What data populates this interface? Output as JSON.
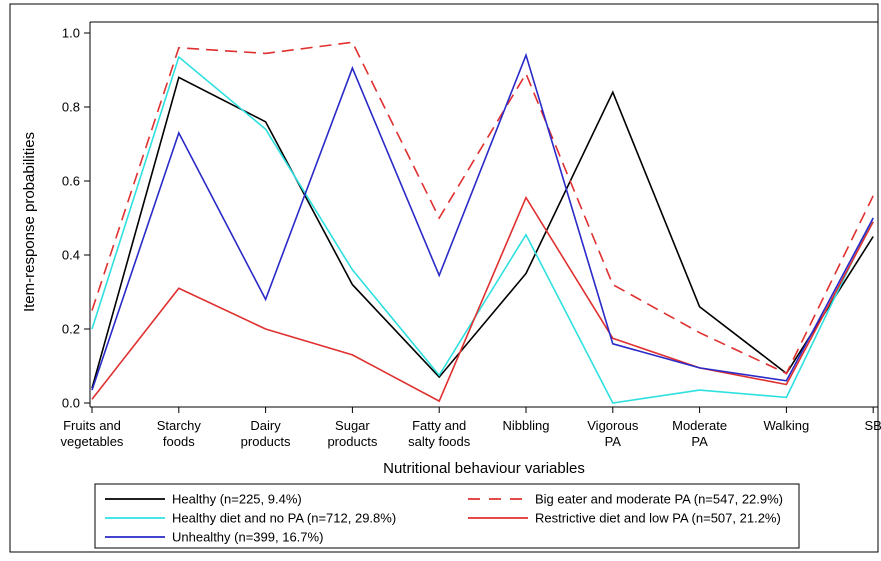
{
  "chart_data": {
    "type": "line",
    "xlabel": "Nutritional behaviour variables",
    "ylabel": "Item-response probabilities",
    "ylim": [
      0,
      1
    ],
    "yticks": [
      "0.0",
      "0.2",
      "0.4",
      "0.6",
      "0.8",
      "1.0"
    ],
    "categories": [
      [
        "Fruits and",
        "vegetables"
      ],
      [
        "Starchy",
        "foods"
      ],
      [
        "Dairy",
        "products"
      ],
      [
        "Sugar",
        "products"
      ],
      [
        "Fatty and",
        "salty foods"
      ],
      [
        "Nibbling"
      ],
      [
        "Vigorous",
        "PA"
      ],
      [
        "Moderate",
        "PA"
      ],
      [
        "Walking"
      ],
      [
        "SB"
      ]
    ],
    "grid": false,
    "legend_position": "bottom",
    "series": [
      {
        "name": "Healthy (n=225, 9.4%)",
        "color": "#000000",
        "dash": "solid",
        "values": [
          0.04,
          0.88,
          0.76,
          0.32,
          0.07,
          0.35,
          0.84,
          0.26,
          0.08,
          0.45
        ]
      },
      {
        "name": "Big eater and moderate PA (n=547, 22.9%)",
        "color": "#e03030",
        "dash": "dashed",
        "values": [
          0.25,
          0.96,
          0.945,
          0.975,
          0.5,
          0.89,
          0.32,
          0.19,
          0.08,
          0.56
        ]
      },
      {
        "name": "Healthy diet and no PA (n=712, 29.8%)",
        "color": "#2fe0e0",
        "dash": "solid",
        "values": [
          0.2,
          0.935,
          0.74,
          0.36,
          0.075,
          0.455,
          0.0,
          0.035,
          0.015,
          0.5
        ]
      },
      {
        "name": "Restrictive diet and low PA (n=507, 21.2%)",
        "color": "#e03030",
        "dash": "solid",
        "values": [
          0.01,
          0.31,
          0.2,
          0.13,
          0.005,
          0.555,
          0.175,
          0.095,
          0.05,
          0.49
        ]
      },
      {
        "name": "Unhealthy (n=399, 16.7%)",
        "color": "#2a2ac8",
        "dash": "solid",
        "values": [
          0.035,
          0.73,
          0.28,
          0.905,
          0.345,
          0.94,
          0.16,
          0.095,
          0.06,
          0.5
        ]
      }
    ]
  }
}
